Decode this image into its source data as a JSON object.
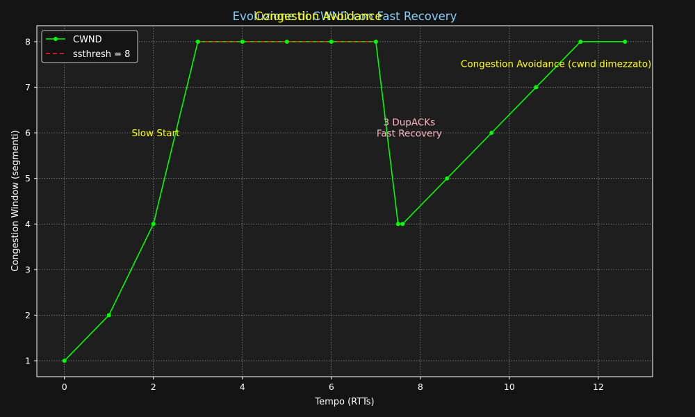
{
  "colors": {
    "page_background": "#141414",
    "plot_background": "#1e1e1e",
    "grid": "#8c8c8c",
    "axis_text": "#ffffff",
    "cwnd_line": "#00ff00",
    "ssthresh_line": "#ff2020",
    "title": "#87cefa",
    "slow_start_annotation": "#ffff00",
    "congestion_avoidance_annotation": "#ffff00",
    "fast_recovery_annotation": "#ffb6c1"
  },
  "chart_data": {
    "type": "line",
    "title": "Evoluzione di CWND con Fast Recovery",
    "overlay_title": "Congestion Avoidance",
    "xlabel": "Tempo (RTTs)",
    "ylabel": "Congestion Window (segmenti)",
    "xlim": [
      -0.62,
      13.22
    ],
    "ylim": [
      0.65,
      8.35
    ],
    "xticks": [
      0,
      2,
      4,
      6,
      8,
      10,
      12
    ],
    "yticks": [
      1,
      2,
      3,
      4,
      5,
      6,
      7,
      8
    ],
    "grid": true,
    "legend_position": "upper-left",
    "series": [
      {
        "name": "CWND",
        "style": "solid-with-markers",
        "x": [
          0,
          1,
          2,
          3,
          4,
          5,
          6,
          7,
          7.5,
          7.6,
          8.6,
          9.6,
          10.6,
          11.6,
          12.6
        ],
        "y": [
          1,
          2,
          4,
          8,
          8,
          8,
          8,
          8,
          4,
          4,
          5,
          6,
          7,
          8,
          8
        ]
      },
      {
        "name": "ssthresh = 8",
        "style": "dashed",
        "x": [
          3,
          7
        ],
        "y": [
          8,
          8
        ]
      }
    ],
    "annotations": [
      {
        "id": "slow_start",
        "lines": [
          "Slow Start"
        ],
        "x": 2.05,
        "y": 6.0
      },
      {
        "id": "fast_recovery",
        "lines": [
          "3 DupACKs",
          "Fast Recovery"
        ],
        "x": 7.75,
        "y": 6.12
      },
      {
        "id": "congestion_avoidance",
        "lines": [
          "Congestion Avoidance (cwnd dimezzato)"
        ],
        "x": 11.05,
        "y": 7.52
      }
    ]
  }
}
